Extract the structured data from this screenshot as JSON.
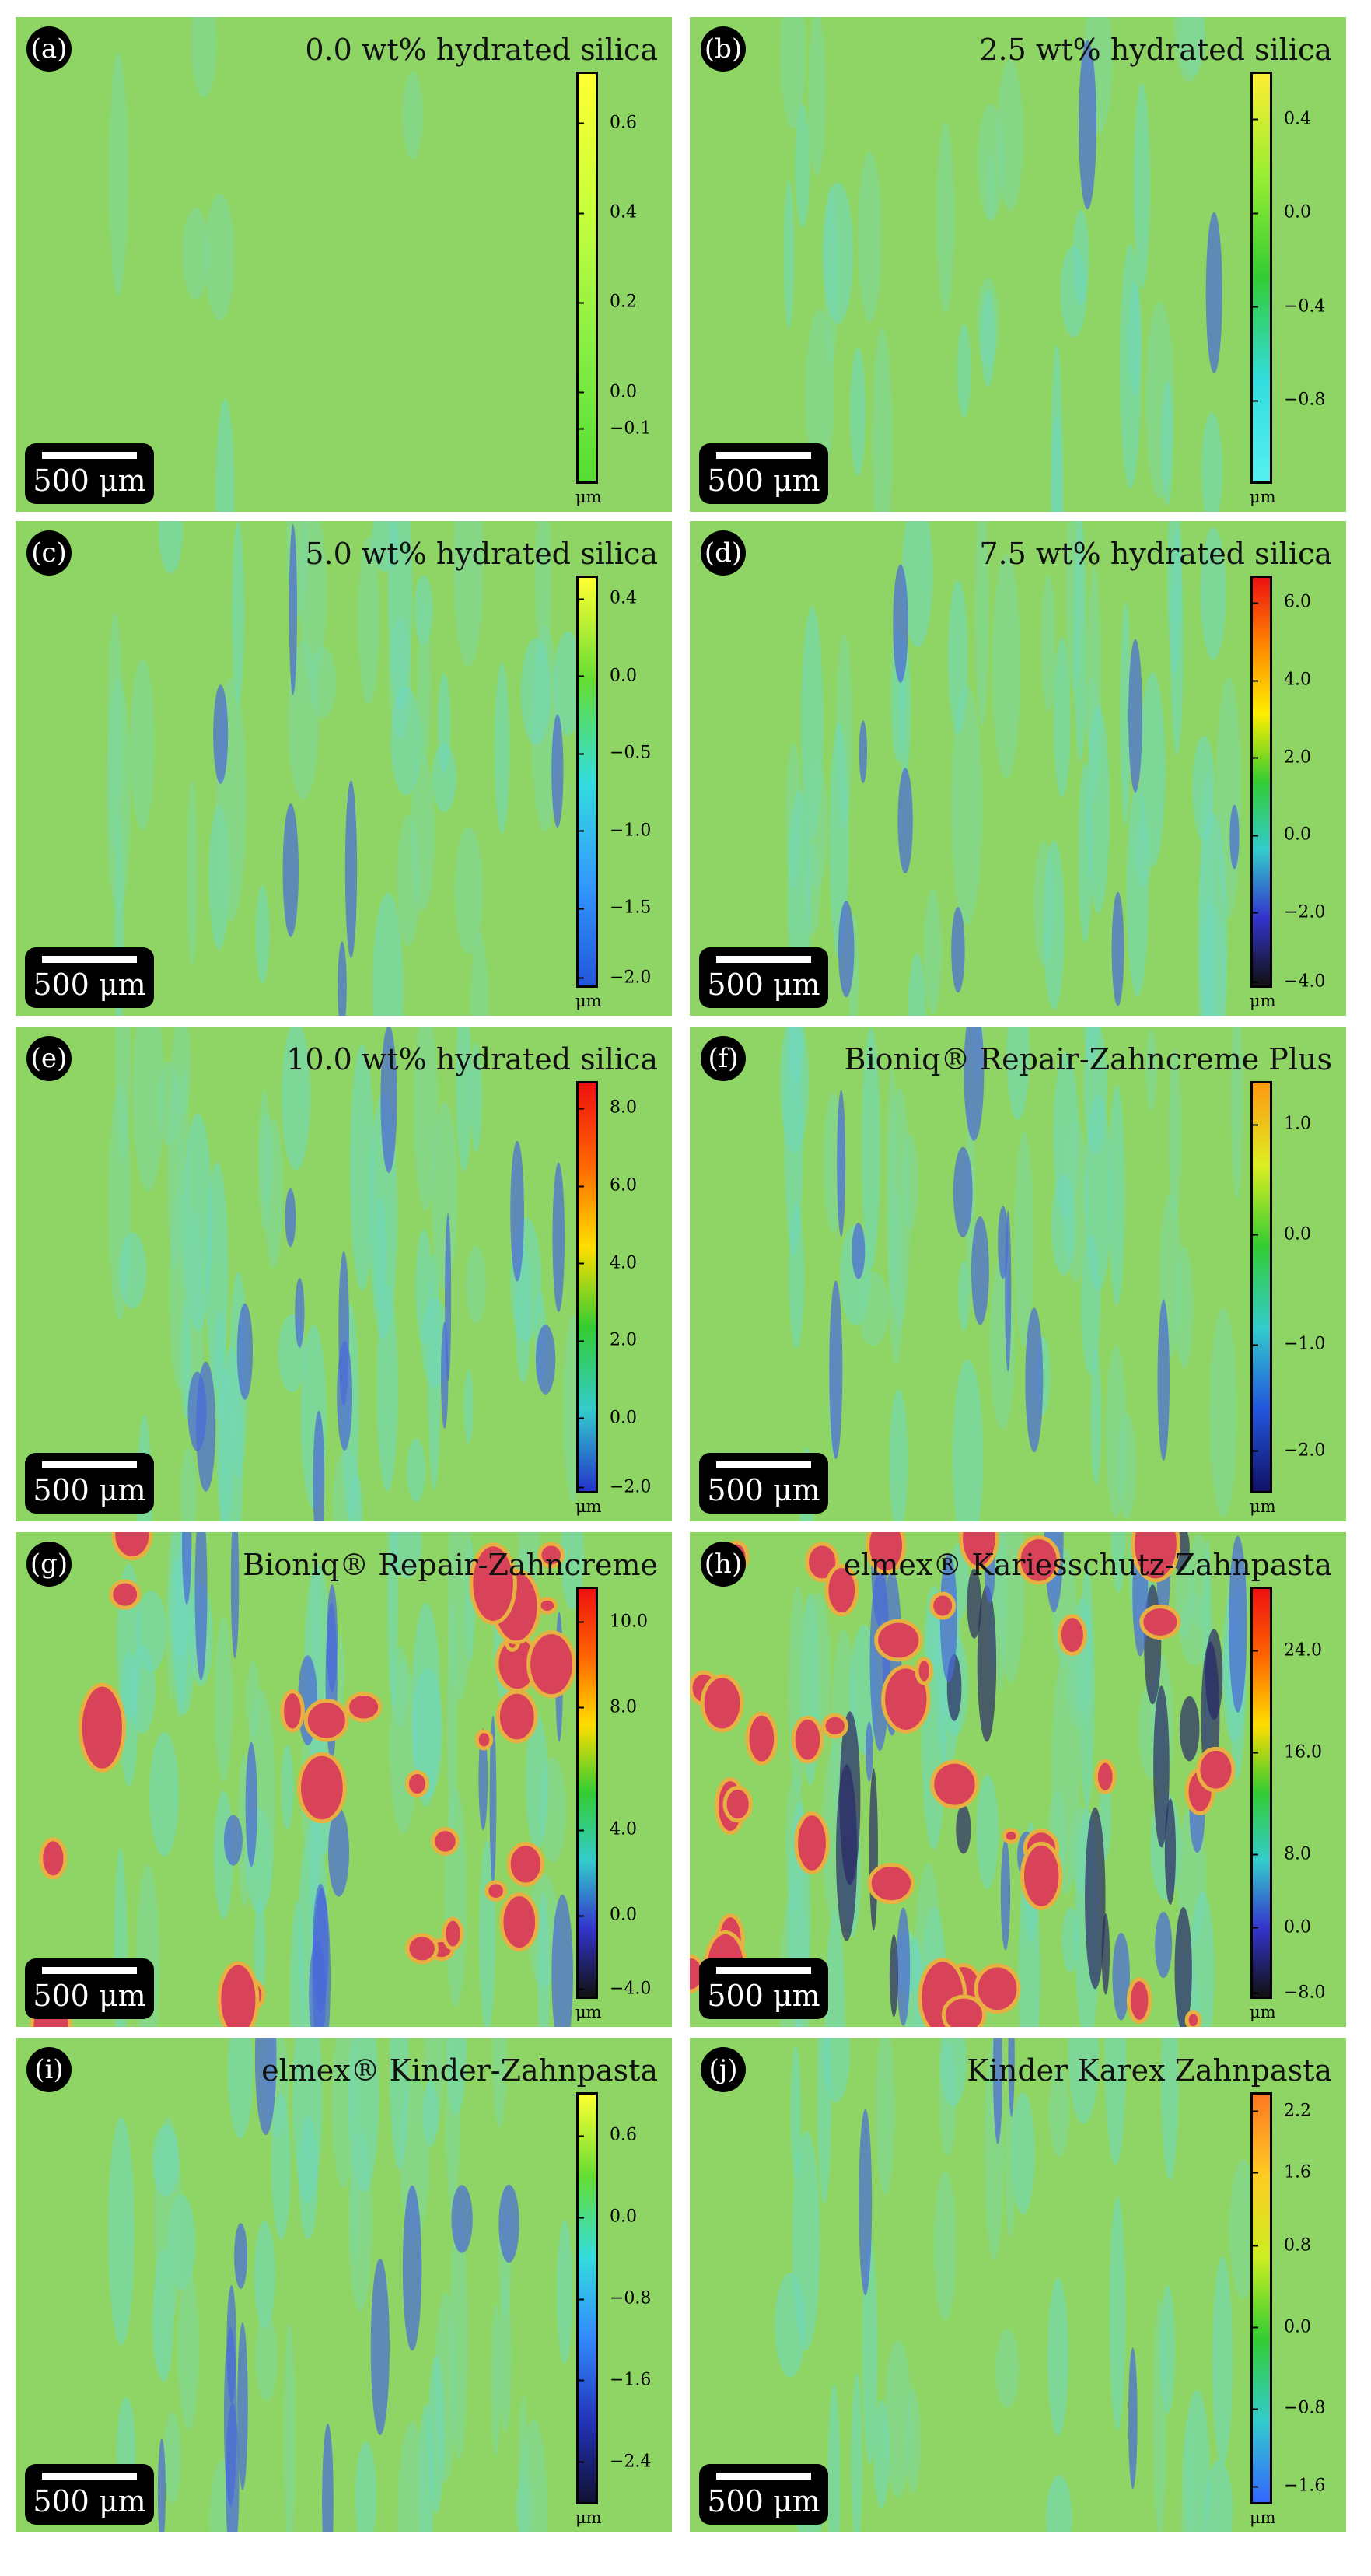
{
  "scale_bar_label": "500 μm",
  "unit_label": "μm",
  "panels": [
    {
      "letter": "(a)",
      "title": "0.0 wt% hydrated silica",
      "ticks": [
        "0.6",
        "0.4",
        "0.2",
        "0.0",
        "−0.1"
      ],
      "colorbar": [
        "#ffff33",
        "#c8ff3c",
        "#88ee44",
        "#55dd33"
      ]
    },
    {
      "letter": "(b)",
      "title": "2.5 wt% hydrated silica",
      "ticks": [
        "0.4",
        "0.0",
        "−0.4",
        "−0.8"
      ],
      "colorbar": [
        "#ffee33",
        "#99ee33",
        "#33cc33",
        "#33dddd",
        "#55f0f0"
      ]
    },
    {
      "letter": "(c)",
      "title": "5.0 wt% hydrated silica",
      "ticks": [
        "0.4",
        "0.0",
        "−0.5",
        "−1.0",
        "−1.5",
        "−2.0"
      ],
      "colorbar": [
        "#ffff33",
        "#66dd33",
        "#33dddd",
        "#3399ff",
        "#2255dd"
      ]
    },
    {
      "letter": "(d)",
      "title": "7.5 wt% hydrated silica",
      "ticks": [
        "6.0",
        "4.0",
        "2.0",
        "0.0",
        "−2.0",
        "−4.0"
      ],
      "colorbar": [
        "#ee1111",
        "#ff8800",
        "#ffee00",
        "#33cc33",
        "#33cccc",
        "#3333cc",
        "#111111"
      ]
    },
    {
      "letter": "(e)",
      "title": "10.0 wt% hydrated silica",
      "ticks": [
        "8.0",
        "6.0",
        "4.0",
        "2.0",
        "0.0",
        "−2.0"
      ],
      "colorbar": [
        "#ee1111",
        "#ff6600",
        "#ffdd00",
        "#33cc33",
        "#33cccc",
        "#2233cc"
      ]
    },
    {
      "letter": "(f)",
      "title": "Bioniq® Repair-Zahncreme Plus",
      "ticks": [
        "1.0",
        "0.0",
        "−1.0",
        "−2.0"
      ],
      "colorbar": [
        "#ff9911",
        "#ddee22",
        "#33cc33",
        "#33cccc",
        "#2255dd",
        "#111166"
      ]
    },
    {
      "letter": "(g)",
      "title": "Bioniq® Repair-Zahncreme",
      "ticks": [
        "10.0",
        "8.0",
        "4.0",
        "0.0",
        "−4.0"
      ],
      "colorbar": [
        "#ee1111",
        "#ff6600",
        "#ffdd00",
        "#33cc33",
        "#33cccc",
        "#3333cc",
        "#111111"
      ]
    },
    {
      "letter": "(h)",
      "title": "elmex® Kariesschutz-Zahnpasta",
      "ticks": [
        "24.0",
        "16.0",
        "8.0",
        "0.0",
        "−8.0"
      ],
      "colorbar": [
        "#ee1111",
        "#ff6600",
        "#ffdd00",
        "#33cc33",
        "#33cccc",
        "#3333cc",
        "#111111"
      ]
    },
    {
      "letter": "(i)",
      "title": "elmex® Kinder-Zahnpasta",
      "ticks": [
        "0.6",
        "0.0",
        "−0.8",
        "−1.6",
        "−2.4"
      ],
      "colorbar": [
        "#ffff33",
        "#66dd33",
        "#33dddd",
        "#3388ff",
        "#2233bb",
        "#111133"
      ]
    },
    {
      "letter": "(j)",
      "title": "Kinder Karex Zahnpasta",
      "ticks": [
        "2.2",
        "1.6",
        "0.8",
        "0.0",
        "−0.8",
        "−1.6"
      ],
      "colorbar": [
        "#ff7722",
        "#ffcc22",
        "#ccee22",
        "#33cc33",
        "#33cccc",
        "#3366ff"
      ]
    }
  ]
}
